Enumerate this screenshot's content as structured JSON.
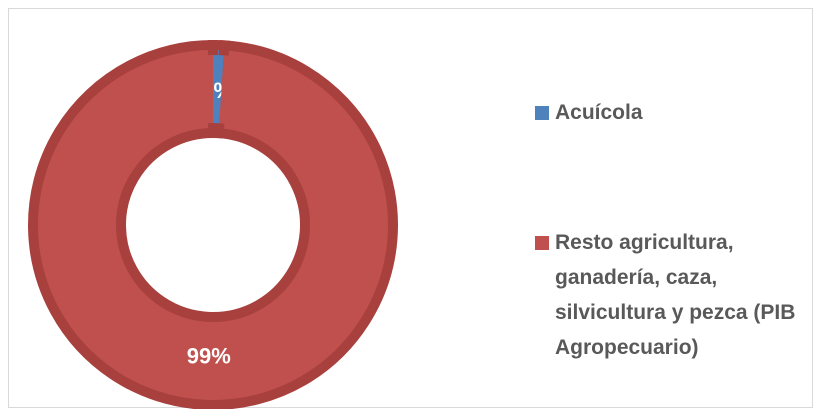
{
  "chart_data": {
    "type": "donut",
    "categories": [
      "Acuícola",
      "Resto agricultura, ganadería, caza, silvicultura y pezca (PIB Agropecuario)"
    ],
    "values": [
      1,
      99
    ],
    "value_labels": [
      "1%",
      "99%"
    ],
    "colors": [
      "#4f81bd",
      "#c0504d"
    ],
    "legend": "right"
  }
}
